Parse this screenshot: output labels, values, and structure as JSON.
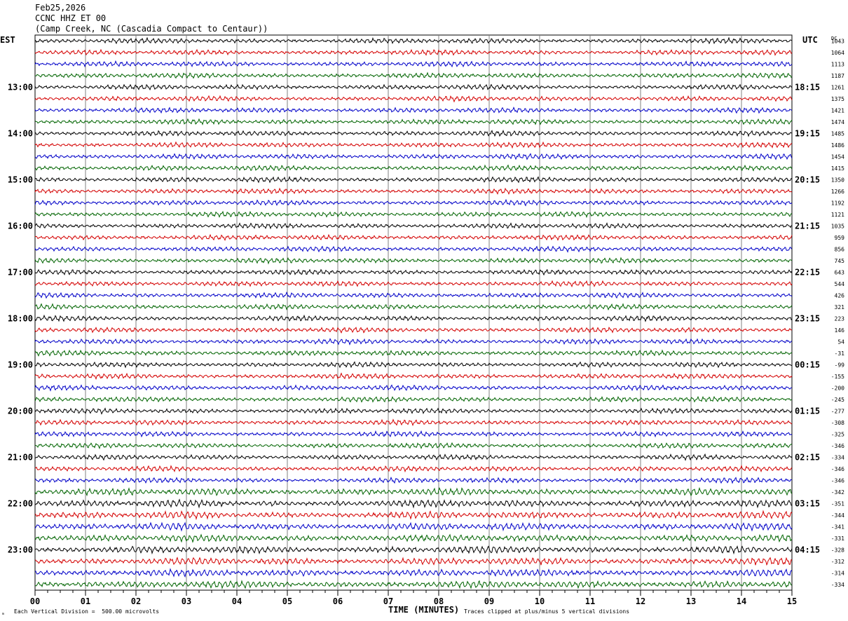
{
  "header": {
    "date": "Feb25,2026",
    "station": "CCNC HHZ ET 00",
    "location": "(Camp Creek, NC (Cascadia Compact to Centaur))"
  },
  "footer": {
    "corner_mark": "ₘ",
    "division_note": "Each Vertical Division =  500.00 microvolts",
    "xlabel": "TIME (MINUTES)",
    "clip_note": "Traces clipped at plus/minus 5 vertical divisions"
  },
  "chart_data": {
    "type": "line",
    "title": "",
    "left_axis_label": "EST",
    "right_axis_label": "UTC",
    "dc_label": "DC",
    "xlabel": "TIME (MINUTES)",
    "xlim": [
      0,
      15
    ],
    "x_ticks": [
      "00",
      "01",
      "02",
      "03",
      "04",
      "05",
      "06",
      "07",
      "08",
      "09",
      "10",
      "11",
      "12",
      "13",
      "14",
      "15"
    ],
    "minor_ticks_per_minute": 4,
    "grid": true,
    "trace_colors": [
      "#000000",
      "#d40000",
      "#0000c8",
      "#006400"
    ],
    "traces_per_hour": 4,
    "est_labels": [
      {
        "row": 4,
        "text": "13:00"
      },
      {
        "row": 8,
        "text": "14:00"
      },
      {
        "row": 12,
        "text": "15:00"
      },
      {
        "row": 16,
        "text": "16:00"
      },
      {
        "row": 20,
        "text": "17:00"
      },
      {
        "row": 24,
        "text": "18:00"
      },
      {
        "row": 28,
        "text": "19:00"
      },
      {
        "row": 32,
        "text": "20:00"
      },
      {
        "row": 36,
        "text": "21:00"
      },
      {
        "row": 40,
        "text": "22:00"
      },
      {
        "row": 44,
        "text": "23:00"
      }
    ],
    "utc_labels": [
      {
        "row": 4,
        "text": "18:15"
      },
      {
        "row": 8,
        "text": "19:15"
      },
      {
        "row": 12,
        "text": "20:15"
      },
      {
        "row": 16,
        "text": "21:15"
      },
      {
        "row": 20,
        "text": "22:15"
      },
      {
        "row": 24,
        "text": "23:15"
      },
      {
        "row": 28,
        "text": "00:15"
      },
      {
        "row": 32,
        "text": "01:15"
      },
      {
        "row": 36,
        "text": "02:15"
      },
      {
        "row": 40,
        "text": "03:15"
      },
      {
        "row": 44,
        "text": "04:15"
      }
    ],
    "dc_offsets": [
      "1043",
      "1064",
      "1113",
      "1187",
      "1261",
      "1375",
      "1421",
      "1474",
      "1485",
      "1486",
      "1454",
      "1415",
      "1350",
      "1266",
      "1192",
      "1121",
      "1035",
      "959",
      "856",
      "745",
      "643",
      "544",
      "426",
      "321",
      "223",
      "146",
      "54",
      "-31",
      "-99",
      "-155",
      "-200",
      "-245",
      "-277",
      "-308",
      "-325",
      "-346",
      "-334",
      "-346",
      "-346",
      "-342",
      "-351",
      "-344",
      "-341",
      "-331",
      "-328",
      "-312",
      "-314",
      "-334"
    ]
  }
}
